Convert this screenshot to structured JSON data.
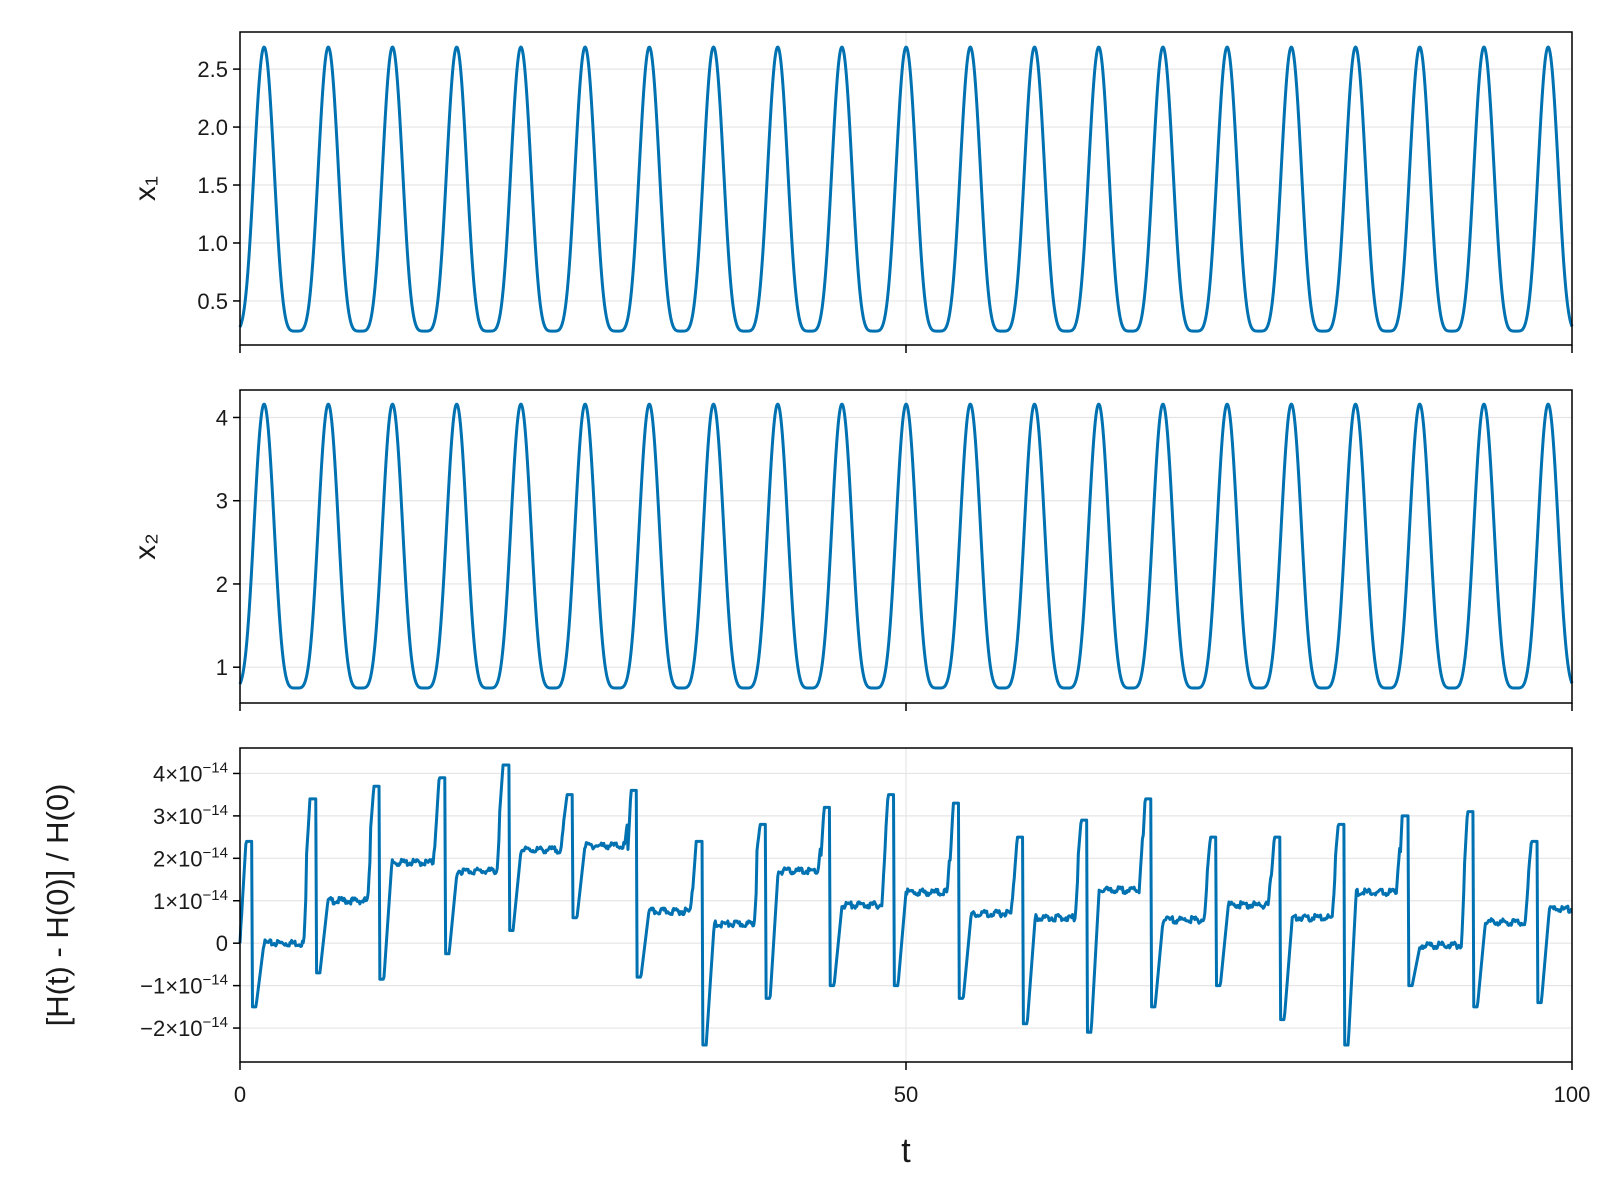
{
  "chart_data": [
    {
      "type": "line",
      "xlabel": "",
      "ylabel": "x₁",
      "xlim": [
        0,
        100
      ],
      "ylim": [
        0.12,
        2.82
      ],
      "xticks": [
        0,
        50,
        100
      ],
      "xtick_labels": [
        "",
        "",
        ""
      ],
      "yticks": [
        0.5,
        1.0,
        1.5,
        2.0,
        2.5
      ],
      "ytick_labels": [
        "0.5",
        "1.0",
        "1.5",
        "2.0",
        "2.5"
      ],
      "grid": true,
      "color": "#0072b2",
      "model": {
        "period": 4.82,
        "min": 0.24,
        "max": 2.69,
        "x0": 2.2
      },
      "series": [
        {
          "values": []
        }
      ]
    },
    {
      "type": "line",
      "xlabel": "",
      "ylabel": "x₂",
      "xlim": [
        0,
        100
      ],
      "ylim": [
        0.57,
        4.33
      ],
      "xticks": [
        0,
        50,
        100
      ],
      "xtick_labels": [
        "",
        "",
        ""
      ],
      "yticks": [
        1,
        2,
        3,
        4
      ],
      "ytick_labels": [
        "1",
        "2",
        "3",
        "4"
      ],
      "grid": true,
      "color": "#0072b2",
      "model": {
        "period": 4.82,
        "min": 0.75,
        "max": 4.16,
        "x0": 1.0
      },
      "series": [
        {
          "values": []
        }
      ]
    },
    {
      "type": "line",
      "xlabel": "t",
      "ylabel": "[H(t) - H(0)] / H(0)",
      "xlim": [
        0,
        100
      ],
      "ylim": [
        -2.8e-14,
        4.6e-14
      ],
      "xticks": [
        0,
        50,
        100
      ],
      "xtick_labels": [
        "0",
        "50",
        "100"
      ],
      "yticks": [
        -2e-14,
        -1e-14,
        0,
        1e-14,
        2e-14,
        3e-14,
        4e-14
      ],
      "ytick_labels": [
        {
          "base": "−2×10",
          "exp": "−14"
        },
        {
          "base": "−1×10",
          "exp": "−14"
        },
        {
          "base": "0",
          "exp": ""
        },
        {
          "base": "1×10",
          "exp": "−14"
        },
        {
          "base": "2×10",
          "exp": "−14"
        },
        {
          "base": "3×10",
          "exp": "−14"
        },
        {
          "base": "4×10",
          "exp": "−14"
        }
      ],
      "grid": true,
      "color": "#0072b2",
      "steps": [
        {
          "t": 0,
          "level": 0.0
        },
        {
          "t": 5.0,
          "level": 1e-14
        },
        {
          "t": 9.8,
          "level": 1.9e-14
        },
        {
          "t": 14.6,
          "level": 1.7e-14
        },
        {
          "t": 19.5,
          "level": 2.2e-14
        },
        {
          "t": 24.3,
          "level": 2.3e-14
        },
        {
          "t": 29.1,
          "level": 7.5e-15
        },
        {
          "t": 34.0,
          "level": 4.5e-15
        },
        {
          "t": 38.8,
          "level": 1.7e-14
        },
        {
          "t": 43.6,
          "level": 9e-15
        },
        {
          "t": 48.5,
          "level": 1.2e-14
        },
        {
          "t": 53.3,
          "level": 7e-15
        },
        {
          "t": 58.1,
          "level": 6e-15
        },
        {
          "t": 62.9,
          "level": 1.25e-14
        },
        {
          "t": 67.8,
          "level": 5.5e-15
        },
        {
          "t": 72.6,
          "level": 9e-15
        },
        {
          "t": 77.4,
          "level": 6e-15
        },
        {
          "t": 82.2,
          "level": 1.2e-14
        },
        {
          "t": 87.1,
          "level": -5e-16
        },
        {
          "t": 91.9,
          "level": 5e-15
        },
        {
          "t": 96.7,
          "level": 8e-15
        }
      ],
      "spikes": [
        {
          "t": 0.9,
          "hi": 2.4e-14,
          "lo": -1.5e-14
        },
        {
          "t": 5.7,
          "hi": 3.4e-14,
          "lo": -7e-15
        },
        {
          "t": 10.5,
          "hi": 3.7e-14,
          "lo": -8.5e-15
        },
        {
          "t": 15.4,
          "hi": 3.9e-14,
          "lo": -2.5e-15
        },
        {
          "t": 20.2,
          "hi": 4.2e-14,
          "lo": 3e-15
        },
        {
          "t": 25.0,
          "hi": 3.5e-14,
          "lo": 6e-15
        },
        {
          "t": 29.8,
          "hi": 3.6e-14,
          "lo": -8e-15
        },
        {
          "t": 34.7,
          "hi": 2.4e-14,
          "lo": -2.4e-14
        },
        {
          "t": 39.5,
          "hi": 2.8e-14,
          "lo": -1.3e-14
        },
        {
          "t": 44.3,
          "hi": 3.2e-14,
          "lo": -1e-14
        },
        {
          "t": 49.1,
          "hi": 3.5e-14,
          "lo": -1e-14
        },
        {
          "t": 54.0,
          "hi": 3.3e-14,
          "lo": -1.3e-14
        },
        {
          "t": 58.8,
          "hi": 2.5e-14,
          "lo": -1.9e-14
        },
        {
          "t": 63.6,
          "hi": 2.9e-14,
          "lo": -2.1e-14
        },
        {
          "t": 68.4,
          "hi": 3.4e-14,
          "lo": -1.5e-14
        },
        {
          "t": 73.3,
          "hi": 2.5e-14,
          "lo": -1e-14
        },
        {
          "t": 78.1,
          "hi": 2.5e-14,
          "lo": -1.8e-14
        },
        {
          "t": 82.9,
          "hi": 2.8e-14,
          "lo": -2.4e-14
        },
        {
          "t": 87.7,
          "hi": 3e-14,
          "lo": -1e-14
        },
        {
          "t": 92.6,
          "hi": 3.1e-14,
          "lo": -1.5e-14
        },
        {
          "t": 97.4,
          "hi": 2.4e-14,
          "lo": -1.4e-14
        }
      ],
      "series": [
        {
          "values": []
        }
      ]
    }
  ]
}
